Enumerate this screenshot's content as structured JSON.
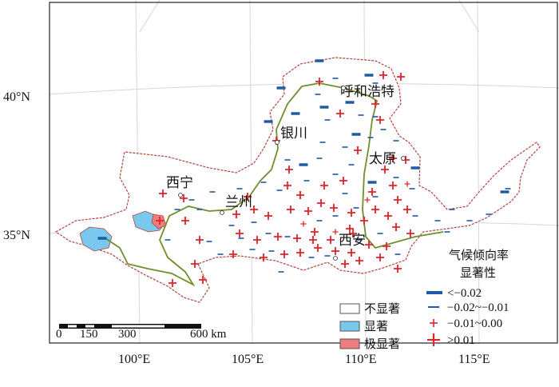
{
  "axes": {
    "lat_labels": [
      "40°N",
      "35°N"
    ],
    "lon_labels": [
      "100°E",
      "105°E",
      "110°E",
      "115°E"
    ]
  },
  "cities": [
    {
      "name": "呼和浩特",
      "lon": 111.7,
      "lat": 40.8
    },
    {
      "name": "银川",
      "lon": 106.3,
      "lat": 38.5
    },
    {
      "name": "太原",
      "lon": 112.5,
      "lat": 37.9
    },
    {
      "name": "西宁",
      "lon": 101.8,
      "lat": 36.6
    },
    {
      "name": "兰州",
      "lon": 103.8,
      "lat": 36.1
    },
    {
      "name": "西安",
      "lon": 108.9,
      "lat": 34.3
    }
  ],
  "legend_trend": {
    "title_line1": "气候倾向率",
    "title_line2": "显著性",
    "items": [
      {
        "symbol": "thick-dash",
        "label": "<−0.02"
      },
      {
        "symbol": "thin-dash",
        "label": "−0.02~−0.01"
      },
      {
        "symbol": "small-plus",
        "label": "−0.01~0.00"
      },
      {
        "symbol": "large-plus",
        "label": ">0.01"
      }
    ]
  },
  "legend_significance": {
    "items": [
      {
        "label": "不显著",
        "color": "#ffffff"
      },
      {
        "label": "显著",
        "color": "#79c8ee"
      },
      {
        "label": "极显著",
        "color": "#ef7d80"
      }
    ]
  },
  "scale_bar": {
    "labels": [
      "0",
      "150",
      "300",
      "600 km"
    ]
  },
  "colors": {
    "basin_outline": "#b3443c",
    "river": "#6f8f2a",
    "thick_dash": "#1f5aa6",
    "plus": "#e0242a",
    "significant": "#79c8ee",
    "very_significant": "#ef7d80"
  }
}
